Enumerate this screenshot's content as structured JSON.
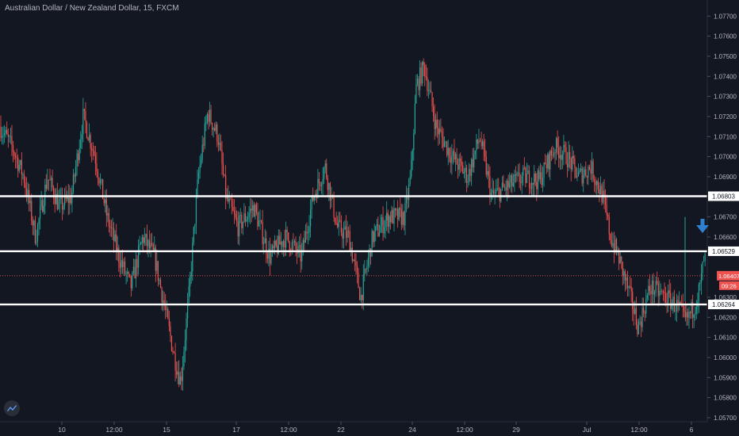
{
  "header": {
    "title": "Australian Dollar / New Zealand Dollar, 15, FXCM"
  },
  "colors": {
    "background": "#131722",
    "up": "#26a69a",
    "down": "#ef5350",
    "axis_text": "#b2b5be",
    "level_line": "#ffffff",
    "price_label": "#ef5350",
    "arrow": "#2f80d1"
  },
  "icons": {
    "logo": "tradingview-logo-icon",
    "arrow": "arrow-down-icon"
  },
  "chart_data": {
    "type": "candlestick",
    "title": "Australian Dollar / New Zealand Dollar, 15, FXCM",
    "ylim": [
      1.0568,
      1.0778
    ],
    "y_ticks": [
      "1.07700",
      "1.07600",
      "1.07500",
      "1.07400",
      "1.07300",
      "1.07200",
      "1.07100",
      "1.07000",
      "1.06900",
      "1.06700",
      "1.06600",
      "1.06300",
      "1.06200",
      "1.06100",
      "1.06000",
      "1.05900",
      "1.05800",
      "1.05700"
    ],
    "x_tick_labels": [
      "10",
      "12:00",
      "15",
      "17",
      "12:00",
      "22",
      "24",
      "12:00",
      "29",
      "Jul",
      "12:00",
      "6"
    ],
    "horizontal_levels": [
      {
        "label": "1.06803",
        "value": 1.06803
      },
      {
        "label": "1.06529",
        "value": 1.06529
      },
      {
        "label": "1.06264",
        "value": 1.06264
      }
    ],
    "current_price": {
      "label": "1.06407",
      "value": 1.06407,
      "countdown": "09:26"
    },
    "anchors": [
      [
        0,
        1.0715
      ],
      [
        15,
        1.0705
      ],
      [
        30,
        1.069
      ],
      [
        45,
        1.066
      ],
      [
        60,
        1.069
      ],
      [
        75,
        1.0675
      ],
      [
        90,
        1.068
      ],
      [
        105,
        1.072
      ],
      [
        120,
        1.07
      ],
      [
        135,
        1.067
      ],
      [
        150,
        1.065
      ],
      [
        165,
        1.0635
      ],
      [
        180,
        1.066
      ],
      [
        195,
        1.065
      ],
      [
        210,
        1.062
      ],
      [
        220,
        1.06
      ],
      [
        228,
        1.0588
      ],
      [
        238,
        1.063
      ],
      [
        250,
        1.069
      ],
      [
        262,
        1.0722
      ],
      [
        275,
        1.071
      ],
      [
        285,
        1.068
      ],
      [
        300,
        1.0665
      ],
      [
        320,
        1.0675
      ],
      [
        340,
        1.065
      ],
      [
        360,
        1.066
      ],
      [
        380,
        1.065
      ],
      [
        395,
        1.068
      ],
      [
        410,
        1.0695
      ],
      [
        425,
        1.0665
      ],
      [
        440,
        1.066
      ],
      [
        455,
        1.063
      ],
      [
        470,
        1.066
      ],
      [
        490,
        1.067
      ],
      [
        510,
        1.067
      ],
      [
        518,
        1.069
      ],
      [
        525,
        1.0735
      ],
      [
        535,
        1.0745
      ],
      [
        550,
        1.0715
      ],
      [
        570,
        1.07
      ],
      [
        590,
        1.069
      ],
      [
        605,
        1.071
      ],
      [
        620,
        1.068
      ],
      [
        640,
        1.0685
      ],
      [
        660,
        1.069
      ],
      [
        680,
        1.0688
      ],
      [
        700,
        1.0705
      ],
      [
        715,
        1.07
      ],
      [
        730,
        1.069
      ],
      [
        745,
        1.0695
      ],
      [
        760,
        1.068
      ],
      [
        770,
        1.066
      ],
      [
        780,
        1.065
      ],
      [
        795,
        1.063
      ],
      [
        805,
        1.0615
      ],
      [
        820,
        1.0635
      ],
      [
        840,
        1.063
      ],
      [
        855,
        1.0625
      ],
      [
        865,
        1.0618
      ],
      [
        875,
        1.0625
      ],
      [
        883,
        1.0635
      ],
      [
        888,
        1.065
      ],
      [
        893,
        1.0641
      ]
    ]
  }
}
